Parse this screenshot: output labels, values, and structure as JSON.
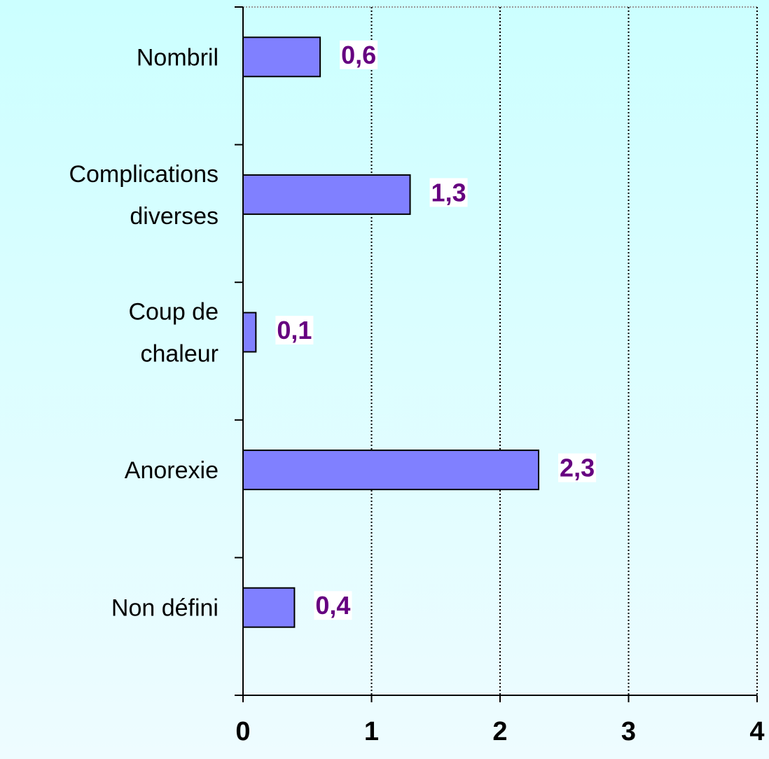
{
  "chart_data": {
    "type": "bar",
    "orientation": "horizontal",
    "categories": [
      "Nombril",
      "Complications\ndiverses",
      "Coup de\nchaleur",
      "Anorexie",
      "Non défini"
    ],
    "values": [
      0.6,
      1.3,
      0.1,
      2.3,
      0.4
    ],
    "value_labels": [
      "0,6",
      "1,3",
      "0,1",
      "2,3",
      "0,4"
    ],
    "color": "#8080ff",
    "label_color": "#660080",
    "xlim": [
      0,
      4
    ],
    "xticks": [
      0,
      1,
      2,
      3,
      4
    ],
    "grid": true
  }
}
